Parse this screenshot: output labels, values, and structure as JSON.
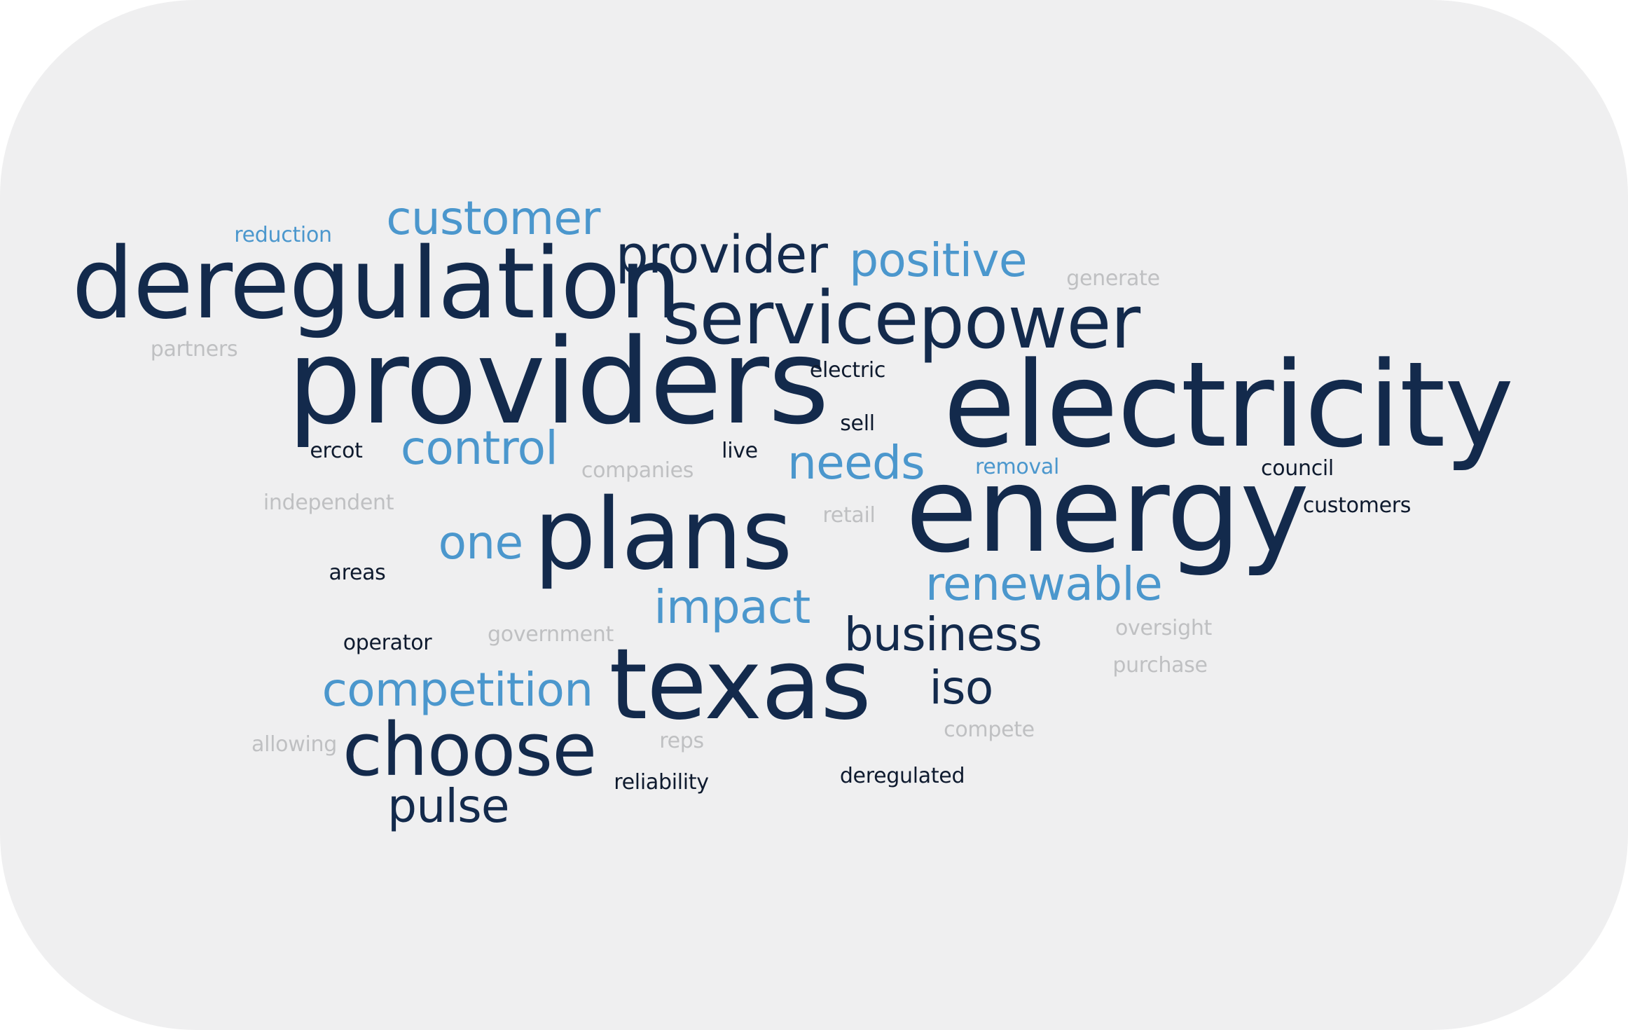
{
  "colors": {
    "background": "#efeff0",
    "dark_navy": "#132a4c",
    "light_blue": "#4b97cd",
    "light_gray": "#bfc0c2",
    "near_black": "#0e1a2e"
  },
  "words": {
    "electricity": "electricity",
    "providers": "providers",
    "energy": "energy",
    "deregulation": "deregulation",
    "texas": "texas",
    "plans": "plans",
    "service": "service",
    "power": "power",
    "provider": "provider",
    "choose": "choose",
    "business": "business",
    "iso": "iso",
    "pulse": "pulse",
    "customer": "customer",
    "positive": "positive",
    "control": "control",
    "needs": "needs",
    "one": "one",
    "renewable": "renewable",
    "impact": "impact",
    "competition": "competition",
    "reduction": "reduction",
    "removal": "removal",
    "ercot": "ercot",
    "live": "live",
    "electric": "electric",
    "sell": "sell",
    "council": "council",
    "customers": "customers",
    "areas": "areas",
    "operator": "operator",
    "reliability": "reliability",
    "deregulated": "deregulated",
    "partners": "partners",
    "generate": "generate",
    "companies": "companies",
    "independent": "independent",
    "retail": "retail",
    "government": "government",
    "oversight": "oversight",
    "purchase": "purchase",
    "allowing": "allowing",
    "reps": "reps",
    "compete": "compete"
  }
}
